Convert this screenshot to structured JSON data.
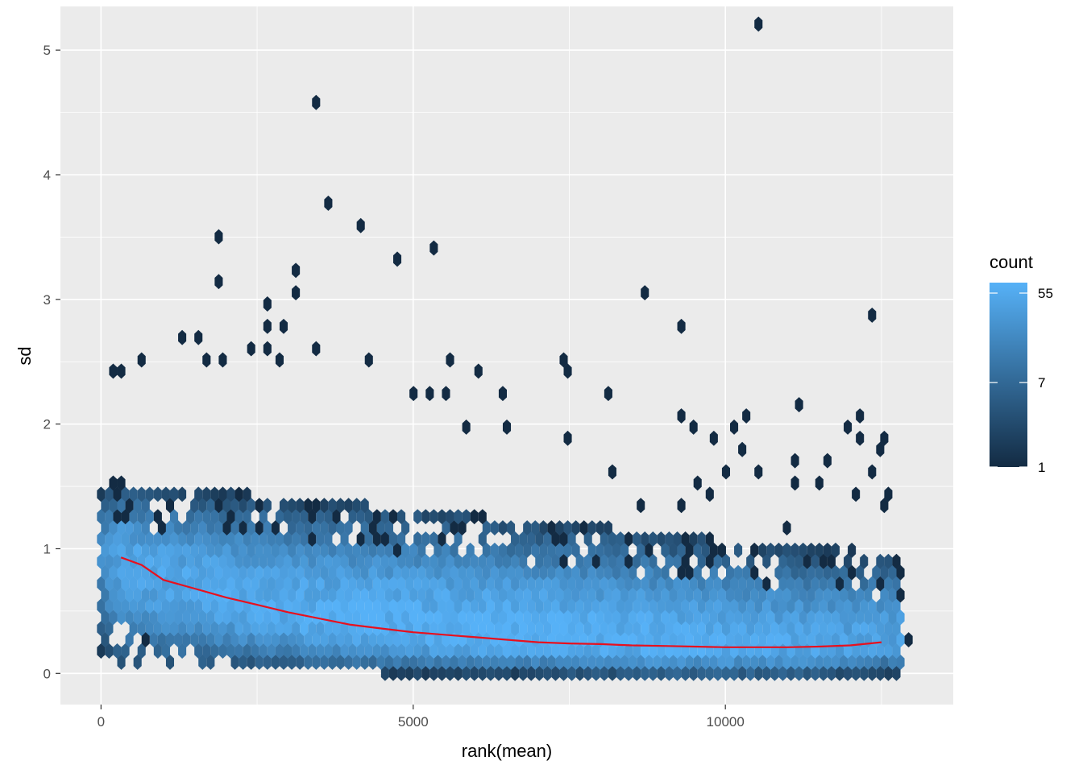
{
  "chart_data": {
    "type": "hexbin",
    "xlabel": "rank(mean)",
    "ylabel": "sd",
    "xlim": [
      -650,
      13650
    ],
    "ylim": [
      -0.25,
      5.35
    ],
    "x_ticks": [
      0,
      5000,
      10000
    ],
    "x_tick_labels": [
      "0",
      "5000",
      "10000"
    ],
    "y_ticks": [
      0,
      1,
      2,
      3,
      4,
      5
    ],
    "y_tick_labels": [
      "0",
      "1",
      "2",
      "3",
      "4",
      "5"
    ],
    "grid": true,
    "legend": {
      "title": "count",
      "position": "right",
      "scale": "log",
      "breaks": [
        1,
        7,
        55
      ],
      "break_labels": [
        "1",
        "7",
        "55"
      ],
      "range": [
        1,
        70
      ],
      "color_low": "#132B43",
      "color_high": "#56B1F7"
    },
    "trend_line": {
      "color": "#e8101e",
      "x": [
        320,
        650,
        1000,
        1500,
        2000,
        2500,
        3000,
        3500,
        4000,
        4500,
        5000,
        5500,
        6000,
        6500,
        7000,
        7500,
        8000,
        8500,
        9000,
        9500,
        10000,
        10500,
        11000,
        11500,
        12000,
        12500
      ],
      "y": [
        0.93,
        0.87,
        0.75,
        0.68,
        0.61,
        0.55,
        0.49,
        0.44,
        0.39,
        0.36,
        0.33,
        0.31,
        0.29,
        0.27,
        0.25,
        0.24,
        0.235,
        0.225,
        0.22,
        0.215,
        0.21,
        0.21,
        0.21,
        0.215,
        0.225,
        0.25
      ]
    },
    "density": {
      "peak_x": 6000,
      "band_top_at_0": 1.55,
      "band_top_at_max": 0.95,
      "x_max": 12850
    },
    "outliers": [
      {
        "x": 10500,
        "y": 5.17
      },
      {
        "x": 3460,
        "y": 4.54
      },
      {
        "x": 3600,
        "y": 3.73
      },
      {
        "x": 4100,
        "y": 3.56
      },
      {
        "x": 1920,
        "y": 3.47
      },
      {
        "x": 5350,
        "y": 3.38
      },
      {
        "x": 4720,
        "y": 3.29
      },
      {
        "x": 3100,
        "y": 3.2
      },
      {
        "x": 1920,
        "y": 3.11
      },
      {
        "x": 3100,
        "y": 3.02
      },
      {
        "x": 8700,
        "y": 3.02
      },
      {
        "x": 2720,
        "y": 2.93
      },
      {
        "x": 12300,
        "y": 2.84
      },
      {
        "x": 2720,
        "y": 2.76
      },
      {
        "x": 2980,
        "y": 2.76
      },
      {
        "x": 9350,
        "y": 2.76
      },
      {
        "x": 1280,
        "y": 2.67
      },
      {
        "x": 1540,
        "y": 2.67
      },
      {
        "x": 3460,
        "y": 2.58
      },
      {
        "x": 2450,
        "y": 2.58
      },
      {
        "x": 2720,
        "y": 2.58
      },
      {
        "x": 2850,
        "y": 2.49
      },
      {
        "x": 4350,
        "y": 2.49
      },
      {
        "x": 5620,
        "y": 2.49
      },
      {
        "x": 7400,
        "y": 2.49
      },
      {
        "x": 6000,
        "y": 2.4
      },
      {
        "x": 7520,
        "y": 2.4
      },
      {
        "x": 8100,
        "y": 2.22
      },
      {
        "x": 6400,
        "y": 2.22
      },
      {
        "x": 5000,
        "y": 2.22
      },
      {
        "x": 5230,
        "y": 2.22
      },
      {
        "x": 5480,
        "y": 2.22
      },
      {
        "x": 11150,
        "y": 2.13
      },
      {
        "x": 9350,
        "y": 2.04
      },
      {
        "x": 10300,
        "y": 2.04
      },
      {
        "x": 12200,
        "y": 2.04
      },
      {
        "x": 5870,
        "y": 1.95
      },
      {
        "x": 6500,
        "y": 1.95
      },
      {
        "x": 9480,
        "y": 1.95
      },
      {
        "x": 10200,
        "y": 1.95
      },
      {
        "x": 11950,
        "y": 1.95
      },
      {
        "x": 7520,
        "y": 1.86
      },
      {
        "x": 9870,
        "y": 1.86
      },
      {
        "x": 12200,
        "y": 1.86
      },
      {
        "x": 12550,
        "y": 1.86
      },
      {
        "x": 12450,
        "y": 1.78
      },
      {
        "x": 10300,
        "y": 1.78
      },
      {
        "x": 11150,
        "y": 1.69
      },
      {
        "x": 11650,
        "y": 1.69
      },
      {
        "x": 8200,
        "y": 1.6
      },
      {
        "x": 10000,
        "y": 1.6
      },
      {
        "x": 10500,
        "y": 1.6
      },
      {
        "x": 12350,
        "y": 1.6
      },
      {
        "x": 9600,
        "y": 1.51
      },
      {
        "x": 11150,
        "y": 1.51
      },
      {
        "x": 11550,
        "y": 1.51
      },
      {
        "x": 9720,
        "y": 1.42
      },
      {
        "x": 12100,
        "y": 1.42
      },
      {
        "x": 12650,
        "y": 1.42
      },
      {
        "x": 12500,
        "y": 1.33
      },
      {
        "x": 8600,
        "y": 1.33
      },
      {
        "x": 9350,
        "y": 1.33
      },
      {
        "x": 10950,
        "y": 1.15
      },
      {
        "x": 12900,
        "y": 0.27
      },
      {
        "x": 6900,
        "y": 0.0
      },
      {
        "x": 10500,
        "y": 0.0
      },
      {
        "x": 11250,
        "y": 0.0
      },
      {
        "x": 11900,
        "y": 0.0
      },
      {
        "x": 12450,
        "y": 0.0
      },
      {
        "x": 3700,
        "y": 0.09
      },
      {
        "x": 3950,
        "y": 0.09
      },
      {
        "x": 650,
        "y": 0.27
      },
      {
        "x": 1280,
        "y": 0.18
      },
      {
        "x": 1780,
        "y": 0.18
      },
      {
        "x": 0,
        "y": 0.72
      },
      {
        "x": 150,
        "y": 2.4
      },
      {
        "x": 380,
        "y": 2.4
      },
      {
        "x": 700,
        "y": 2.49
      },
      {
        "x": 1650,
        "y": 2.49
      },
      {
        "x": 1930,
        "y": 2.49
      }
    ]
  }
}
